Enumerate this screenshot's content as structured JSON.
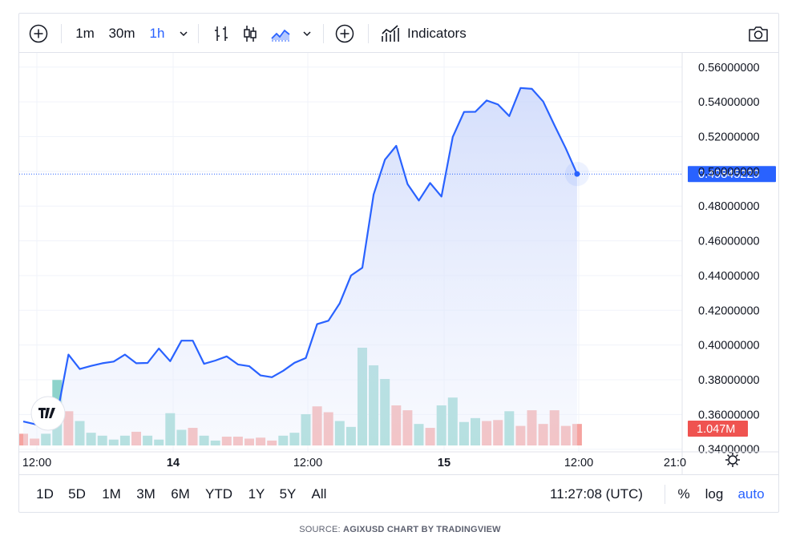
{
  "toolbar": {
    "intervals": [
      "1m",
      "30m",
      "1h"
    ],
    "active_interval": "1h",
    "indicators_label": "Indicators"
  },
  "chart_data": {
    "type": "area",
    "symbol": "AGIXUSD",
    "interval": "1h",
    "line_color": "#2962ff",
    "fill_color_top": "#c7d4fb",
    "fill_color_bottom": "#eef2fd",
    "x_tick_labels": [
      "12:00",
      "14",
      "12:00",
      "15",
      "12:00",
      "21:0"
    ],
    "y_tick_labels": [
      "0.56000000",
      "0.54000000",
      "0.52000000",
      "0.50000000",
      "0.48000000",
      "0.46000000",
      "0.44000000",
      "0.42000000",
      "0.40000000",
      "0.38000000",
      "0.36000000",
      "0.34000000"
    ],
    "ylim": [
      0.3385,
      0.5682
    ],
    "last_price": 0.49845229,
    "last_price_label": "0.49845229",
    "last_volume_label": "1.047M",
    "grid": true,
    "price": [
      0.356,
      0.3545,
      0.352,
      0.36,
      0.3945,
      0.3862,
      0.388,
      0.3895,
      0.3905,
      0.3945,
      0.3895,
      0.3897,
      0.398,
      0.3907,
      0.4025,
      0.4025,
      0.3892,
      0.3911,
      0.3935,
      0.3888,
      0.3878,
      0.3825,
      0.3815,
      0.3852,
      0.3898,
      0.3925,
      0.412,
      0.414,
      0.424,
      0.44,
      0.4445,
      0.4867,
      0.5067,
      0.5147,
      0.4927,
      0.4832,
      0.4933,
      0.4855,
      0.5198,
      0.5342,
      0.5343,
      0.5408,
      0.5385,
      0.5318,
      0.548,
      0.5475,
      0.5402,
      0.5265,
      0.5132,
      0.4985
    ],
    "volume": [
      0.12,
      0.07,
      0.12,
      0.67,
      0.35,
      0.25,
      0.13,
      0.1,
      0.06,
      0.1,
      0.14,
      0.1,
      0.06,
      0.33,
      0.16,
      0.18,
      0.1,
      0.05,
      0.09,
      0.09,
      0.07,
      0.08,
      0.05,
      0.1,
      0.13,
      0.32,
      0.4,
      0.34,
      0.25,
      0.19,
      1.0,
      0.82,
      0.68,
      0.41,
      0.36,
      0.22,
      0.18,
      0.41,
      0.49,
      0.24,
      0.28,
      0.25,
      0.26,
      0.35,
      0.2,
      0.36,
      0.22,
      0.36,
      0.2,
      0.22
    ],
    "volume_up": [
      false,
      false,
      true,
      true,
      false,
      true,
      true,
      true,
      true,
      true,
      false,
      true,
      true,
      true,
      true,
      false,
      true,
      true,
      false,
      false,
      false,
      false,
      false,
      true,
      true,
      true,
      false,
      false,
      true,
      true,
      true,
      true,
      true,
      false,
      false,
      true,
      false,
      true,
      true,
      true,
      true,
      false,
      false,
      true,
      false,
      false,
      false,
      false,
      false,
      false
    ],
    "up_color": "#8dd3cb",
    "down_color": "#f5a3a0"
  },
  "bottombar": {
    "ranges": [
      "1D",
      "5D",
      "1M",
      "3M",
      "6M",
      "YTD",
      "1Y",
      "5Y",
      "All"
    ],
    "clock": "11:27:08 (UTC)",
    "percent_label": "%",
    "log_label": "log",
    "auto_label": "auto"
  },
  "source": {
    "prefix": "SOURCE:",
    "text": "AGIXUSD CHART BY TRADINGVIEW"
  }
}
